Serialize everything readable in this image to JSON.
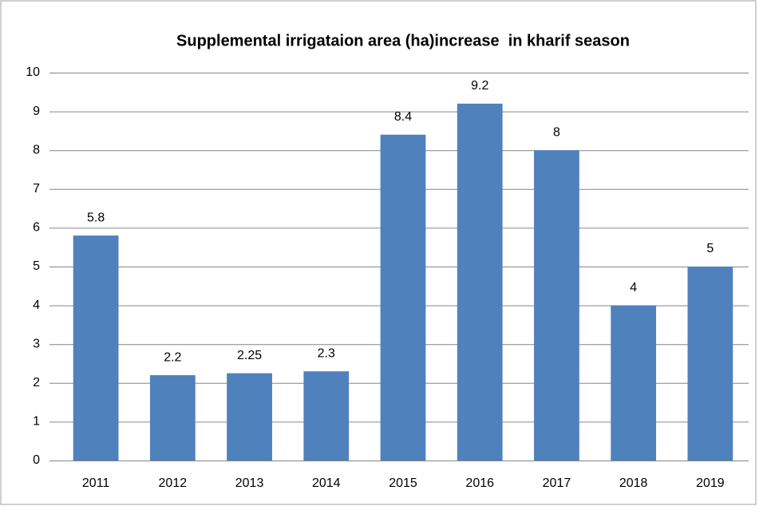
{
  "chart_data": {
    "type": "bar",
    "title": "Supplemental irrigataion area (ha)increase  in kharif season",
    "categories": [
      "2011",
      "2012",
      "2013",
      "2014",
      "2015",
      "2016",
      "2017",
      "2018",
      "2019"
    ],
    "values": [
      5.8,
      2.2,
      2.25,
      2.3,
      8.4,
      9.2,
      8,
      4,
      5
    ],
    "color": "#4f81bd",
    "ylim": [
      0,
      10
    ],
    "yticks": [
      0,
      1,
      2,
      3,
      4,
      5,
      6,
      7,
      8,
      9,
      10
    ],
    "grid": true,
    "data_labels": true
  }
}
